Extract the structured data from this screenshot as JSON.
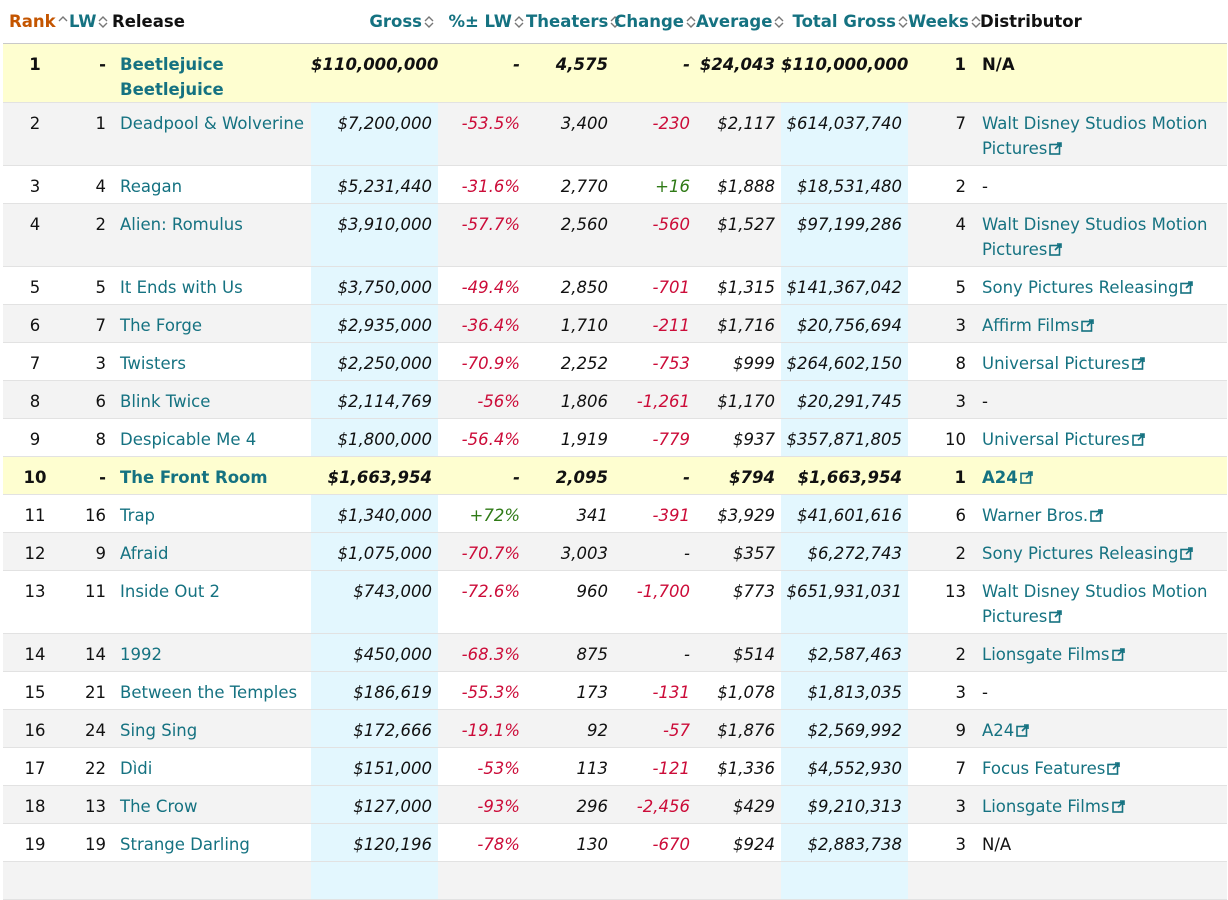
{
  "columns": {
    "rank": "Rank",
    "lw": "LW",
    "release": "Release",
    "gross": "Gross",
    "pct": "%± LW",
    "theaters": "Theaters",
    "change": "Change",
    "average": "Average",
    "total": "Total Gross",
    "weeks": "Weeks",
    "distributor": "Distributor"
  },
  "colors": {
    "link": "#157281",
    "rank_header": "#c45500",
    "negative": "#cc0c39",
    "positive": "#2f7a16",
    "highlight": "#fefed0",
    "blue_column": "#e3f7fe"
  },
  "rows": [
    {
      "rank": "1",
      "lw": "-",
      "release": "Beetlejuice Beetlejuice",
      "gross": "$110,000,000",
      "pct": "-",
      "theaters": "4,575",
      "change": "-",
      "average": "$24,043",
      "total": "$110,000,000",
      "weeks": "1",
      "distributor": "N/A",
      "new": true
    },
    {
      "rank": "2",
      "lw": "1",
      "release": "Deadpool & Wolverine",
      "gross": "$7,200,000",
      "pct": "-53.5%",
      "theaters": "3,400",
      "change": "-230",
      "average": "$2,117",
      "total": "$614,037,740",
      "weeks": "7",
      "distributor": "Walt Disney Studios Motion Pictures"
    },
    {
      "rank": "3",
      "lw": "4",
      "release": "Reagan",
      "gross": "$5,231,440",
      "pct": "-31.6%",
      "theaters": "2,770",
      "change": "+16",
      "average": "$1,888",
      "total": "$18,531,480",
      "weeks": "2",
      "distributor": "-"
    },
    {
      "rank": "4",
      "lw": "2",
      "release": "Alien: Romulus",
      "gross": "$3,910,000",
      "pct": "-57.7%",
      "theaters": "2,560",
      "change": "-560",
      "average": "$1,527",
      "total": "$97,199,286",
      "weeks": "4",
      "distributor": "Walt Disney Studios Motion Pictures"
    },
    {
      "rank": "5",
      "lw": "5",
      "release": "It Ends with Us",
      "gross": "$3,750,000",
      "pct": "-49.4%",
      "theaters": "2,850",
      "change": "-701",
      "average": "$1,315",
      "total": "$141,367,042",
      "weeks": "5",
      "distributor": "Sony Pictures Releasing"
    },
    {
      "rank": "6",
      "lw": "7",
      "release": "The Forge",
      "gross": "$2,935,000",
      "pct": "-36.4%",
      "theaters": "1,710",
      "change": "-211",
      "average": "$1,716",
      "total": "$20,756,694",
      "weeks": "3",
      "distributor": "Affirm Films"
    },
    {
      "rank": "7",
      "lw": "3",
      "release": "Twisters",
      "gross": "$2,250,000",
      "pct": "-70.9%",
      "theaters": "2,252",
      "change": "-753",
      "average": "$999",
      "total": "$264,602,150",
      "weeks": "8",
      "distributor": "Universal Pictures"
    },
    {
      "rank": "8",
      "lw": "6",
      "release": "Blink Twice",
      "gross": "$2,114,769",
      "pct": "-56%",
      "theaters": "1,806",
      "change": "-1,261",
      "average": "$1,170",
      "total": "$20,291,745",
      "weeks": "3",
      "distributor": "-"
    },
    {
      "rank": "9",
      "lw": "8",
      "release": "Despicable Me 4",
      "gross": "$1,800,000",
      "pct": "-56.4%",
      "theaters": "1,919",
      "change": "-779",
      "average": "$937",
      "total": "$357,871,805",
      "weeks": "10",
      "distributor": "Universal Pictures"
    },
    {
      "rank": "10",
      "lw": "-",
      "release": "The Front Room",
      "gross": "$1,663,954",
      "pct": "-",
      "theaters": "2,095",
      "change": "-",
      "average": "$794",
      "total": "$1,663,954",
      "weeks": "1",
      "distributor": "A24",
      "new": true
    },
    {
      "rank": "11",
      "lw": "16",
      "release": "Trap",
      "gross": "$1,340,000",
      "pct": "+72%",
      "theaters": "341",
      "change": "-391",
      "average": "$3,929",
      "total": "$41,601,616",
      "weeks": "6",
      "distributor": "Warner Bros."
    },
    {
      "rank": "12",
      "lw": "9",
      "release": "Afraid",
      "gross": "$1,075,000",
      "pct": "-70.7%",
      "theaters": "3,003",
      "change": "-",
      "average": "$357",
      "total": "$6,272,743",
      "weeks": "2",
      "distributor": "Sony Pictures Releasing"
    },
    {
      "rank": "13",
      "lw": "11",
      "release": "Inside Out 2",
      "gross": "$743,000",
      "pct": "-72.6%",
      "theaters": "960",
      "change": "-1,700",
      "average": "$773",
      "total": "$651,931,031",
      "weeks": "13",
      "distributor": "Walt Disney Studios Motion Pictures"
    },
    {
      "rank": "14",
      "lw": "14",
      "release": "1992",
      "gross": "$450,000",
      "pct": "-68.3%",
      "theaters": "875",
      "change": "-",
      "average": "$514",
      "total": "$2,587,463",
      "weeks": "2",
      "distributor": "Lionsgate Films"
    },
    {
      "rank": "15",
      "lw": "21",
      "release": "Between the Temples",
      "gross": "$186,619",
      "pct": "-55.3%",
      "theaters": "173",
      "change": "-131",
      "average": "$1,078",
      "total": "$1,813,035",
      "weeks": "3",
      "distributor": "-"
    },
    {
      "rank": "16",
      "lw": "24",
      "release": "Sing Sing",
      "gross": "$172,666",
      "pct": "-19.1%",
      "theaters": "92",
      "change": "-57",
      "average": "$1,876",
      "total": "$2,569,992",
      "weeks": "9",
      "distributor": "A24"
    },
    {
      "rank": "17",
      "lw": "22",
      "release": "Dìdi",
      "gross": "$151,000",
      "pct": "-53%",
      "theaters": "113",
      "change": "-121",
      "average": "$1,336",
      "total": "$4,552,930",
      "weeks": "7",
      "distributor": "Focus Features"
    },
    {
      "rank": "18",
      "lw": "13",
      "release": "The Crow",
      "gross": "$127,000",
      "pct": "-93%",
      "theaters": "296",
      "change": "-2,456",
      "average": "$429",
      "total": "$9,210,313",
      "weeks": "3",
      "distributor": "Lionsgate Films"
    },
    {
      "rank": "19",
      "lw": "19",
      "release": "Strange Darling",
      "gross": "$120,196",
      "pct": "-78%",
      "theaters": "130",
      "change": "-670",
      "average": "$924",
      "total": "$2,883,738",
      "weeks": "3",
      "distributor": "N/A"
    },
    {
      "rank": "",
      "lw": "",
      "release": "",
      "gross": "",
      "pct": "",
      "theaters": "",
      "change": "",
      "average": "",
      "total": "",
      "weeks": "",
      "distributor": ""
    }
  ]
}
